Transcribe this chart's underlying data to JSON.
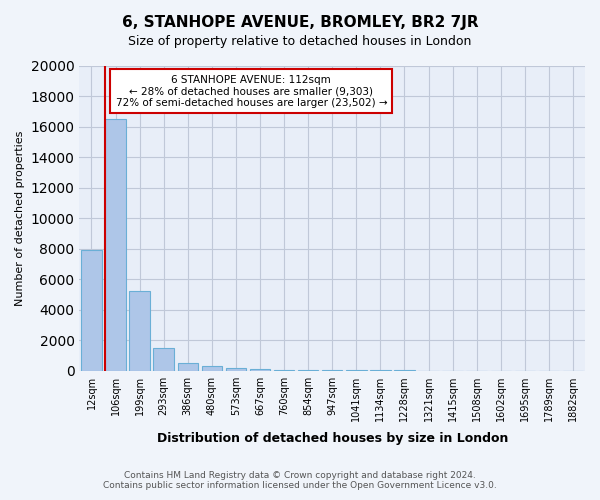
{
  "title": "6, STANHOPE AVENUE, BROMLEY, BR2 7JR",
  "subtitle": "Size of property relative to detached houses in London",
  "xlabel": "Distribution of detached houses by size in London",
  "ylabel": "Number of detached properties",
  "bar_labels": [
    "12sqm",
    "106sqm",
    "199sqm",
    "293sqm",
    "386sqm",
    "480sqm",
    "573sqm",
    "667sqm",
    "760sqm",
    "854sqm",
    "947sqm",
    "1041sqm",
    "1134sqm",
    "1228sqm",
    "1321sqm",
    "1415sqm",
    "1508sqm",
    "1602sqm",
    "1695sqm",
    "1789sqm",
    "1882sqm"
  ],
  "bar_values": [
    7900,
    16500,
    5200,
    1450,
    480,
    290,
    180,
    90,
    40,
    20,
    10,
    5,
    3,
    2,
    1,
    1,
    0,
    0,
    0,
    0,
    0
  ],
  "bar_color": "#aec6e8",
  "bar_edge_color": "#6aafd6",
  "red_line_index": 1,
  "annotation_text": "6 STANHOPE AVENUE: 112sqm\n← 28% of detached houses are smaller (9,303)\n72% of semi-detached houses are larger (23,502) →",
  "annotation_box_color": "#ffffff",
  "annotation_border_color": "#cc0000",
  "red_line_color": "#cc0000",
  "ylim": [
    0,
    20000
  ],
  "yticks": [
    0,
    2000,
    4000,
    6000,
    8000,
    10000,
    12000,
    14000,
    16000,
    18000,
    20000
  ],
  "footer_line1": "Contains HM Land Registry data © Crown copyright and database right 2024.",
  "footer_line2": "Contains public sector information licensed under the Open Government Licence v3.0.",
  "bg_color": "#f0f4fa",
  "plot_bg_color": "#e8eef8",
  "grid_color": "#c0c8d8"
}
